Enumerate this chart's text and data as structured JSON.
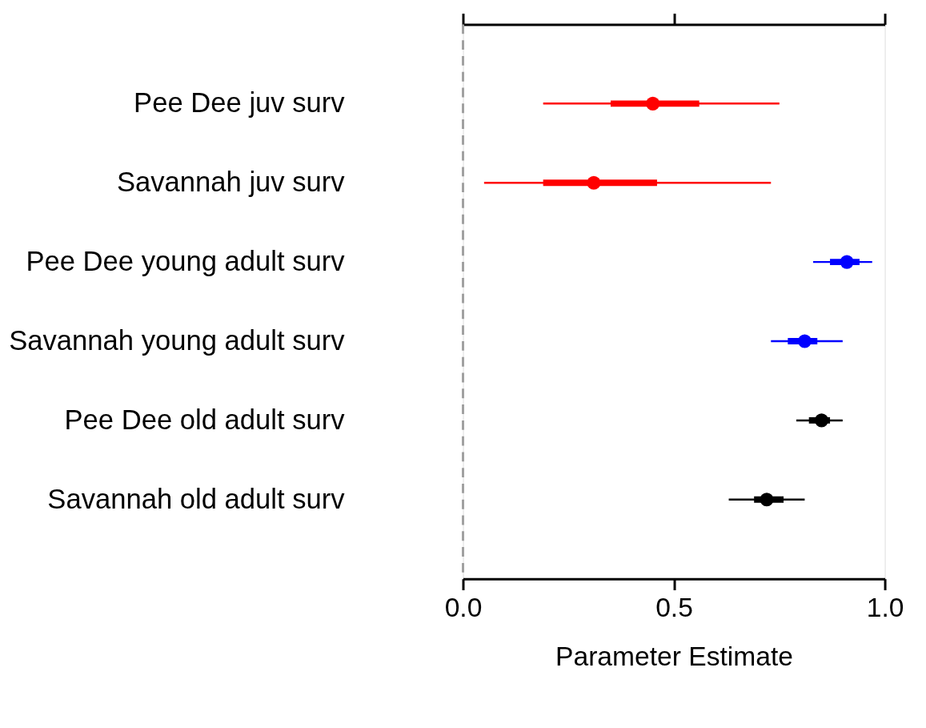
{
  "chart_data": {
    "type": "box",
    "orientation": "horizontal",
    "xlabel": "Parameter Estimate",
    "categories": [
      "Pee Dee juv surv",
      "Savannah juv surv",
      "Pee Dee young adult surv",
      "Savannah young adult surv",
      "Pee Dee old adult surv",
      "Savannah old adult surv"
    ],
    "boxes": [
      {
        "low": 0.19,
        "q1": 0.35,
        "median": 0.45,
        "q3": 0.56,
        "high": 0.75
      },
      {
        "low": 0.05,
        "q1": 0.19,
        "median": 0.31,
        "q3": 0.46,
        "high": 0.73
      },
      {
        "low": 0.83,
        "q1": 0.87,
        "median": 0.91,
        "q3": 0.94,
        "high": 0.97
      },
      {
        "low": 0.73,
        "q1": 0.77,
        "median": 0.81,
        "q3": 0.84,
        "high": 0.9
      },
      {
        "low": 0.79,
        "q1": 0.82,
        "median": 0.85,
        "q3": 0.87,
        "high": 0.9
      },
      {
        "low": 0.63,
        "q1": 0.69,
        "median": 0.72,
        "q3": 0.76,
        "high": 0.81
      }
    ],
    "colors": [
      "#ff0000",
      "#ff0000",
      "#0000ff",
      "#0000ff",
      "#000000",
      "#000000"
    ],
    "xlim": [
      0,
      1
    ],
    "xticks": [
      {
        "value": 0,
        "label": "0.0"
      },
      {
        "value": 0.5,
        "label": "0.5"
      },
      {
        "value": 1,
        "label": "1.0"
      }
    ],
    "tick_labels": "xy",
    "ref_lines": [
      {
        "axis": "x",
        "value": 0,
        "label": null,
        "color": "#a0a0a0",
        "line_style": "dashed"
      }
    ],
    "grid": false
  }
}
